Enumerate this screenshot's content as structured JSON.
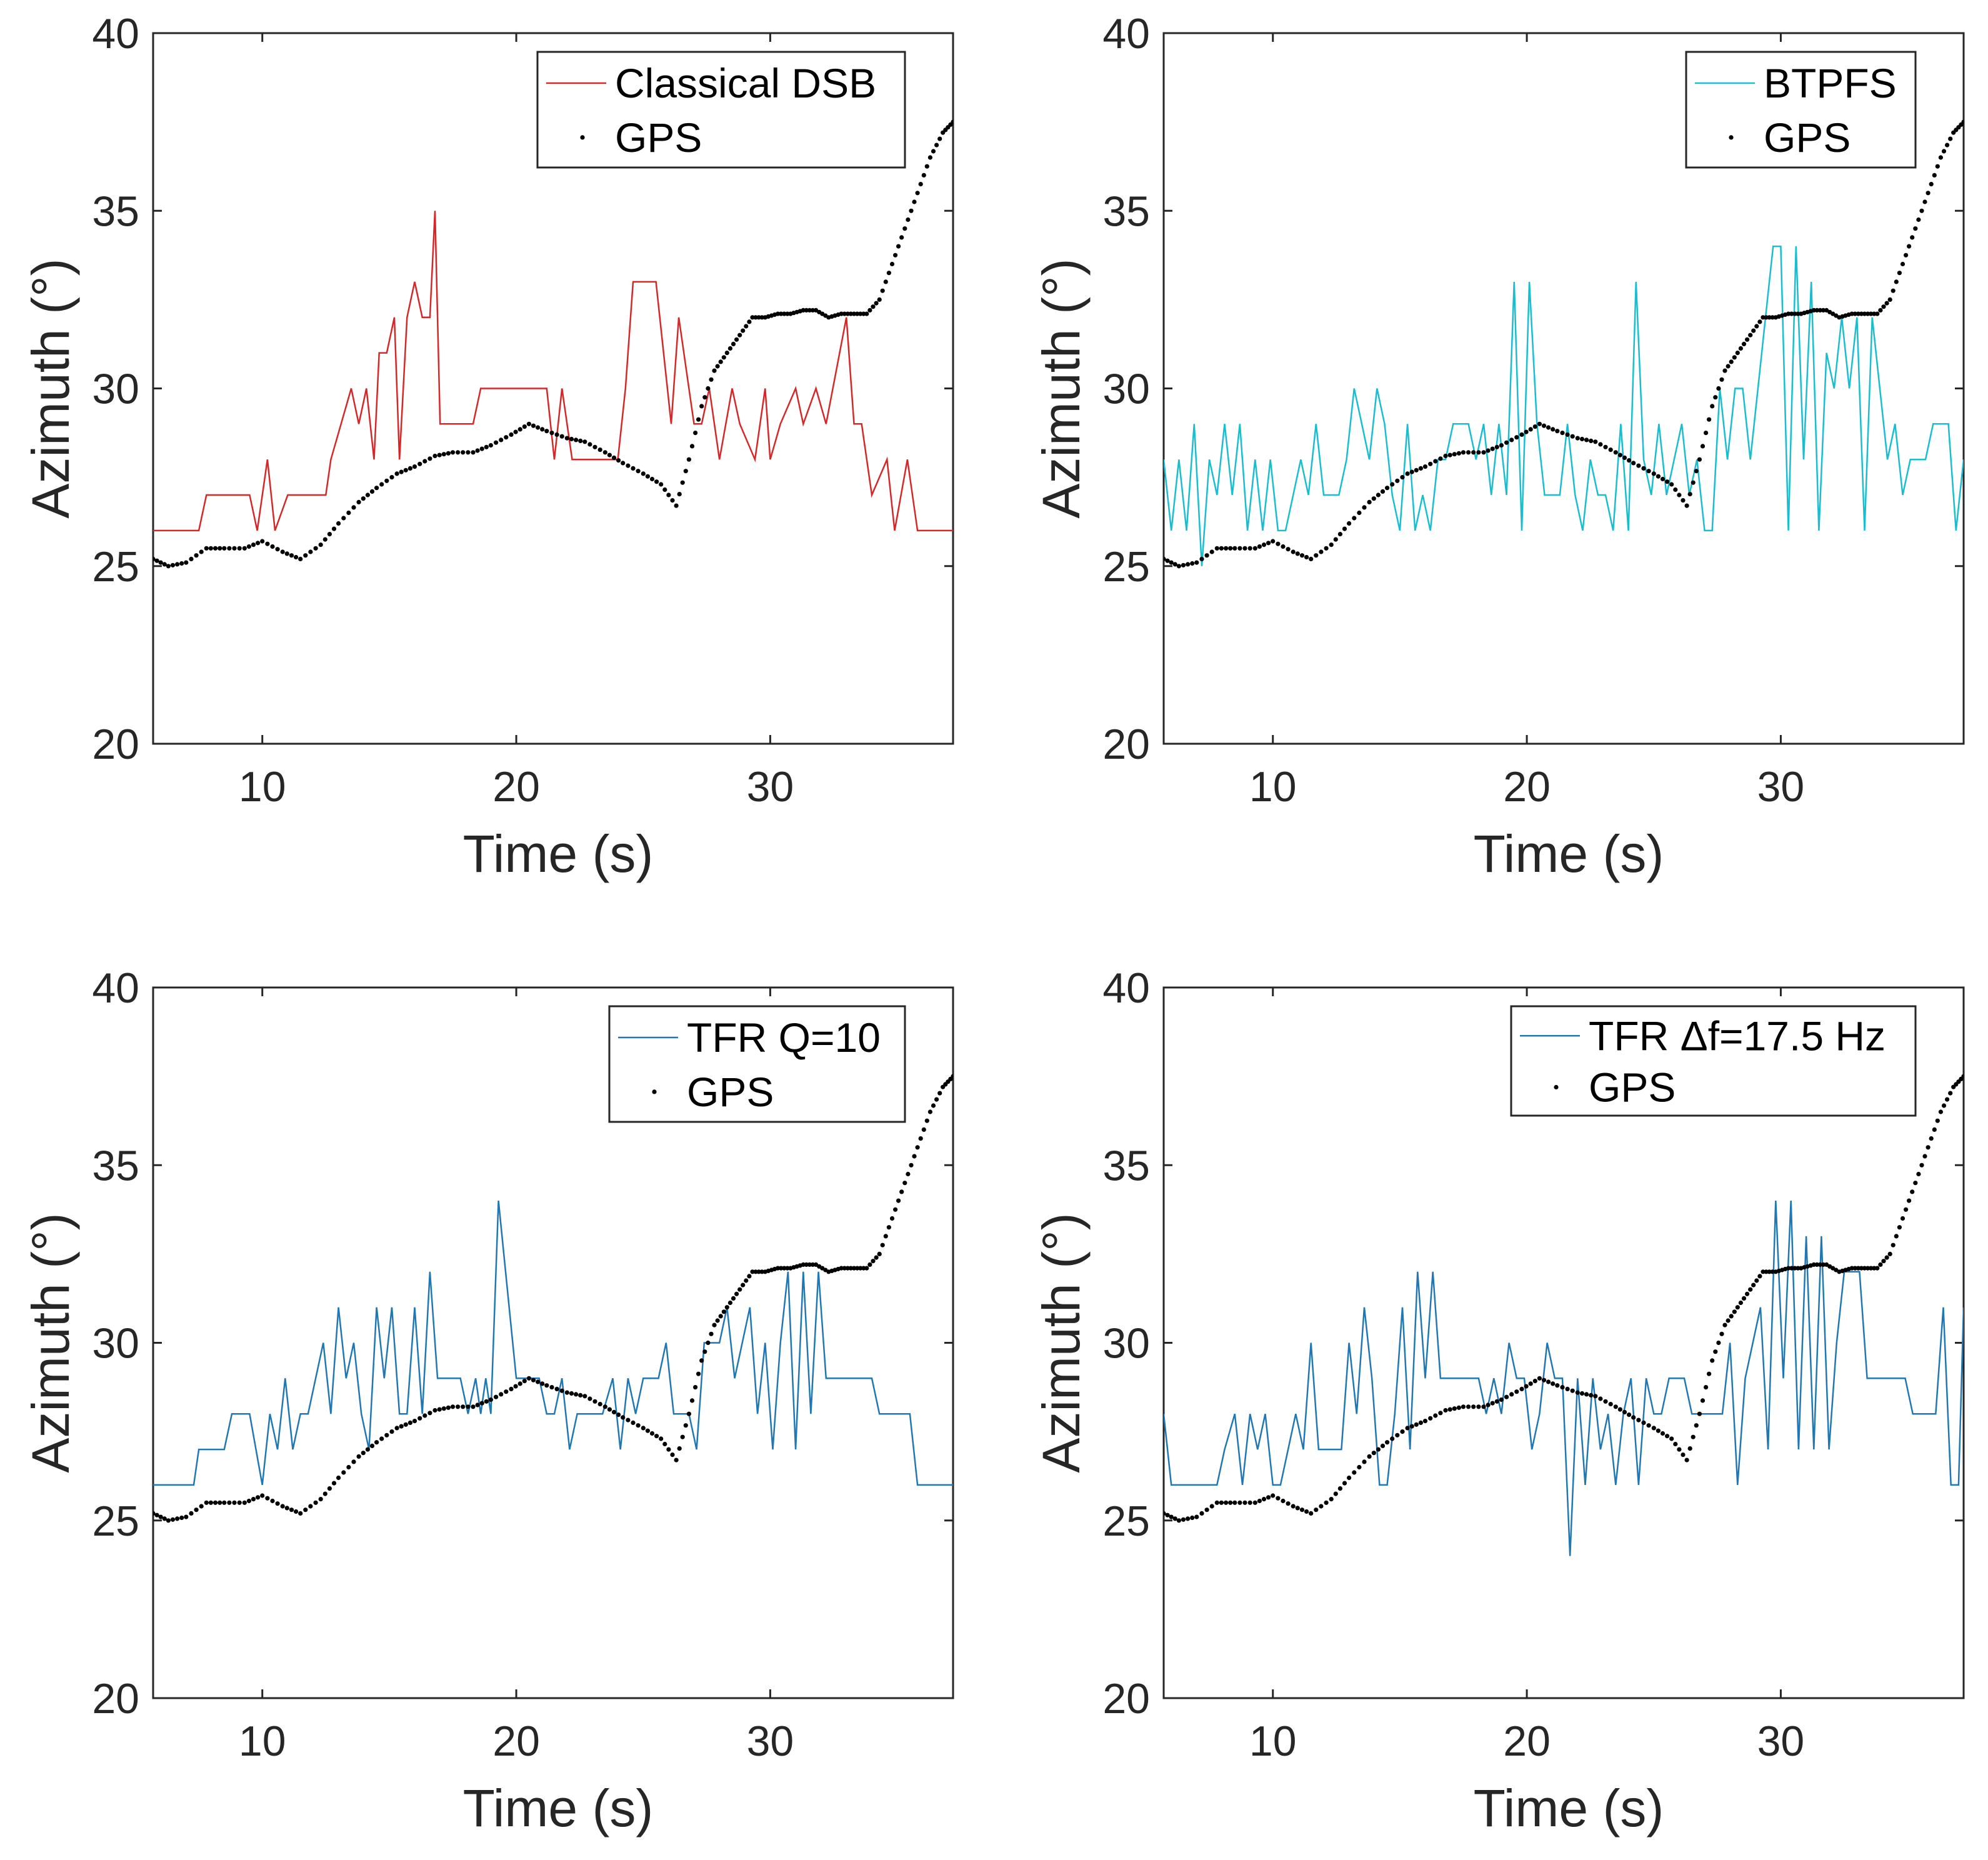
{
  "chart_data": [
    {
      "type": "line",
      "xlabel": "Time (s)",
      "ylabel": "Azimuth (°)",
      "xlim": [
        5.7,
        37.2
      ],
      "ylim": [
        20,
        40
      ],
      "xticks": [
        10,
        20,
        30
      ],
      "yticks": [
        20,
        25,
        30,
        35,
        40
      ],
      "series": [
        {
          "name": "Classical DSB",
          "style": "line",
          "color": "#d62728",
          "x": [
            5.7,
            7.5,
            7.8,
            9.5,
            9.8,
            10.2,
            10.5,
            11,
            12.5,
            12.7,
            13.5,
            13.8,
            14.1,
            14.4,
            14.6,
            14.9,
            15.2,
            15.4,
            15.7,
            16.0,
            16.3,
            16.6,
            16.8,
            17.0,
            17.3,
            18.3,
            18.6,
            19.5,
            20.5,
            21.2,
            21.5,
            21.8,
            22.2,
            22.5,
            23.5,
            24,
            24.3,
            24.6,
            25.5,
            26.1,
            26.4,
            27.0,
            27.3,
            27.6,
            28.0,
            28.5,
            28.8,
            29.4,
            29.8,
            30.0,
            30.4,
            31.0,
            31.3,
            31.8,
            32.2,
            33.0,
            33.3,
            33.6,
            34.0,
            34.6,
            34.9,
            35.4,
            35.8,
            37.2
          ],
          "y": [
            26,
            26,
            27,
            27,
            26,
            28,
            26,
            27,
            27,
            28,
            30,
            29,
            30,
            28,
            31,
            31,
            32,
            28,
            32,
            33,
            32,
            32,
            35,
            29,
            29,
            29,
            30,
            30,
            30,
            30,
            28,
            30,
            28,
            28,
            28,
            28,
            30,
            33,
            33,
            29,
            32,
            29,
            29,
            30,
            28,
            30,
            29,
            28,
            30,
            28,
            29,
            30,
            29,
            30,
            29,
            32,
            29,
            29,
            27,
            28,
            26,
            28,
            26,
            26
          ]
        }
      ],
      "legend": {
        "location": "top-right",
        "entries": [
          "Classical DSB",
          "GPS"
        ]
      }
    },
    {
      "type": "line",
      "xlabel": "Time (s)",
      "ylabel": "Azimuth (°)",
      "xlim": [
        5.7,
        37.2
      ],
      "ylim": [
        20,
        40
      ],
      "xticks": [
        10,
        20,
        30
      ],
      "yticks": [
        20,
        25,
        30,
        35,
        40
      ],
      "series": [
        {
          "name": "BTPFS",
          "style": "line",
          "color": "#17becf",
          "x": [
            5.7,
            6.0,
            6.3,
            6.6,
            6.9,
            7.2,
            7.5,
            7.8,
            8.1,
            8.4,
            8.7,
            9.0,
            9.3,
            9.6,
            9.9,
            10.2,
            10.5,
            10.8,
            11.1,
            11.4,
            11.7,
            12.0,
            12.3,
            12.6,
            12.9,
            13.2,
            13.5,
            13.8,
            14.1,
            14.4,
            14.7,
            15.0,
            15.3,
            15.6,
            15.9,
            16.2,
            16.5,
            16.8,
            17.1,
            17.4,
            17.7,
            18.0,
            18.3,
            18.6,
            18.9,
            19.2,
            19.5,
            19.8,
            20.1,
            20.4,
            20.7,
            21.0,
            21.3,
            21.6,
            21.9,
            22.2,
            22.5,
            22.8,
            23.1,
            23.4,
            23.7,
            24.0,
            24.3,
            24.6,
            24.9,
            25.2,
            25.5,
            25.8,
            26.1,
            26.4,
            26.7,
            27.0,
            27.3,
            27.6,
            27.9,
            28.2,
            28.5,
            28.8,
            29.1,
            29.4,
            29.7,
            30.0,
            30.3,
            30.6,
            30.9,
            31.2,
            31.5,
            31.8,
            32.1,
            32.4,
            32.7,
            33.0,
            33.3,
            33.6,
            33.9,
            34.2,
            34.5,
            34.8,
            35.1,
            35.4,
            35.7,
            36.0,
            36.3,
            36.6,
            36.9,
            37.2
          ],
          "y": [
            28,
            26,
            28,
            26,
            29,
            25,
            28,
            27,
            29,
            27,
            29,
            26,
            28,
            26,
            28,
            26,
            26,
            27,
            28,
            27,
            29,
            27,
            27,
            27,
            28,
            30,
            29,
            28,
            30,
            29,
            27,
            26,
            29,
            26,
            27,
            26,
            28,
            28,
            29,
            29,
            29,
            28,
            29,
            27,
            29,
            27,
            33,
            26,
            33,
            29,
            27,
            27,
            27,
            29,
            27,
            26,
            28,
            27,
            27,
            26,
            29,
            26,
            33,
            28,
            27,
            29,
            27,
            28,
            29,
            27,
            28,
            26,
            26,
            30,
            28,
            30,
            30,
            28,
            30,
            32,
            34,
            34,
            26,
            34,
            28,
            33,
            26,
            31,
            30,
            32,
            30,
            32,
            26,
            32,
            30,
            28,
            29,
            27,
            28,
            28,
            28,
            29,
            29,
            29,
            26,
            28
          ]
        }
      ],
      "legend": {
        "location": "top-right",
        "entries": [
          "BTPFS",
          "GPS"
        ]
      }
    },
    {
      "type": "line",
      "xlabel": "Time (s)",
      "ylabel": "Azimuth (°)",
      "xlim": [
        5.7,
        37.2
      ],
      "ylim": [
        20,
        40
      ],
      "xticks": [
        10,
        20,
        30
      ],
      "yticks": [
        20,
        25,
        30,
        35,
        40
      ],
      "series": [
        {
          "name": "TFR Q=10",
          "style": "line",
          "color": "#1f77b4",
          "x": [
            5.7,
            7.3,
            7.5,
            8.5,
            8.8,
            9.5,
            10.0,
            10.3,
            10.6,
            10.9,
            11.2,
            11.5,
            11.8,
            12.1,
            12.4,
            12.7,
            13.0,
            13.3,
            13.6,
            13.9,
            14.2,
            14.5,
            14.8,
            15.1,
            15.4,
            15.7,
            16.0,
            16.3,
            16.6,
            16.9,
            17.2,
            17.5,
            17.8,
            18.1,
            18.4,
            18.6,
            18.8,
            19.0,
            19.3,
            20.0,
            20.3,
            20.6,
            20.9,
            21.2,
            21.5,
            21.8,
            22.1,
            22.4,
            22.7,
            23.0,
            23.4,
            23.8,
            24.1,
            24.4,
            24.7,
            25.0,
            25.3,
            25.6,
            25.9,
            26.2,
            26.5,
            26.8,
            27.1,
            27.4,
            27.7,
            28.0,
            28.3,
            28.6,
            28.9,
            29.2,
            29.5,
            29.8,
            30.1,
            30.4,
            30.7,
            31.0,
            31.3,
            31.6,
            31.9,
            32.2,
            32.5,
            32.8,
            33.1,
            33.4,
            33.7,
            34.0,
            34.3,
            34.6,
            35.0,
            35.5,
            35.8,
            37.2
          ],
          "y": [
            26,
            26,
            27,
            27,
            28,
            28,
            26,
            28,
            27,
            29,
            27,
            28,
            28,
            29,
            30,
            28,
            31,
            29,
            30,
            28,
            27,
            31,
            29,
            31,
            28,
            28,
            31,
            28,
            32,
            29,
            29,
            29,
            29,
            28,
            29,
            28,
            29,
            28,
            34,
            29,
            29,
            29,
            29,
            28,
            28,
            29,
            27,
            28,
            28,
            28,
            28,
            29,
            27,
            29,
            28,
            29,
            29,
            29,
            30,
            28,
            28,
            28,
            27,
            30,
            30,
            30,
            31,
            29,
            30,
            31,
            28,
            30,
            27,
            30,
            32,
            27,
            32,
            28,
            32,
            29,
            29,
            29,
            29,
            29,
            29,
            29,
            28,
            28,
            28,
            28,
            26,
            26
          ]
        }
      ],
      "legend": {
        "location": "top-right",
        "entries": [
          "TFR Q=10",
          "GPS"
        ]
      }
    },
    {
      "type": "line",
      "xlabel": "Time (s)",
      "ylabel": "Azimuth (°)",
      "xlim": [
        5.7,
        37.2
      ],
      "ylim": [
        20,
        40
      ],
      "xticks": [
        10,
        20,
        30
      ],
      "yticks": [
        20,
        25,
        30,
        35,
        40
      ],
      "series": [
        {
          "name": "TFR Δf=17.5 Hz",
          "style": "line",
          "color": "#1f77b4",
          "x": [
            5.7,
            6.0,
            6.3,
            7.8,
            8.1,
            8.5,
            8.8,
            9.1,
            9.4,
            9.7,
            10.0,
            10.3,
            10.6,
            10.9,
            11.2,
            11.5,
            11.8,
            12.1,
            12.4,
            12.7,
            13.0,
            13.3,
            13.6,
            13.9,
            14.2,
            14.5,
            14.8,
            15.1,
            15.4,
            15.7,
            16.0,
            16.3,
            16.6,
            16.9,
            17.2,
            17.5,
            17.8,
            18.1,
            18.4,
            18.7,
            19.0,
            19.3,
            19.6,
            19.9,
            20.2,
            20.5,
            20.8,
            21.1,
            21.4,
            21.7,
            22.0,
            22.3,
            22.6,
            22.9,
            23.2,
            23.5,
            23.8,
            24.1,
            24.4,
            24.7,
            25.0,
            25.3,
            25.6,
            25.9,
            26.2,
            26.5,
            26.8,
            27.1,
            27.4,
            27.7,
            28.0,
            28.3,
            28.6,
            28.9,
            29.2,
            29.5,
            29.8,
            30.1,
            30.4,
            30.7,
            31.0,
            31.3,
            31.6,
            31.9,
            32.2,
            32.5,
            32.8,
            33.1,
            33.4,
            33.7,
            34.0,
            34.3,
            34.6,
            34.9,
            35.2,
            35.5,
            35.8,
            36.1,
            36.4,
            36.7,
            37.0,
            37.2
          ],
          "y": [
            28,
            26,
            26,
            26,
            27,
            28,
            26,
            28,
            27,
            28,
            26,
            26,
            27,
            28,
            27,
            30,
            27,
            27,
            27,
            27,
            30,
            28,
            31,
            29,
            26,
            26,
            28,
            31,
            27,
            32,
            29,
            32,
            29,
            29,
            29,
            29,
            29,
            29,
            28,
            29,
            28,
            30,
            29,
            29,
            27,
            28,
            30,
            29,
            29,
            24,
            29,
            26,
            29,
            27,
            28,
            26,
            28,
            29,
            26,
            29,
            28,
            28,
            29,
            29,
            29,
            28,
            28,
            28,
            28,
            28,
            30,
            26,
            29,
            30,
            31,
            27,
            34,
            29,
            34,
            27,
            33,
            27,
            33,
            27,
            30,
            32,
            32,
            32,
            29,
            29,
            29,
            29,
            29,
            29,
            28,
            28,
            28,
            28,
            31,
            26,
            26,
            31
          ]
        }
      ],
      "legend": {
        "location": "top-right",
        "entries": [
          "TFR Δf=17.5 Hz",
          "GPS"
        ]
      }
    }
  ],
  "gps": {
    "name": "GPS",
    "style": "dots",
    "color": "#000000",
    "x": [
      5.7,
      6.3,
      7.0,
      7.8,
      8.5,
      9.3,
      10.0,
      10.8,
      11.5,
      12.3,
      13.0,
      13.8,
      14.5,
      15.3,
      16.0,
      16.8,
      17.5,
      18.3,
      19.0,
      19.8,
      20.5,
      21.2,
      22.0,
      22.7,
      23.5,
      24.2,
      25.0,
      25.7,
      26.3,
      26.8,
      27.3,
      27.8,
      28.3,
      28.8,
      29.3,
      29.8,
      30.3,
      30.8,
      31.3,
      31.8,
      32.3,
      32.8,
      33.3,
      33.8,
      34.3,
      34.8,
      35.3,
      35.8,
      36.3,
      36.8,
      37.2
    ],
    "y": [
      25.2,
      25.0,
      25.1,
      25.5,
      25.5,
      25.5,
      25.7,
      25.4,
      25.2,
      25.6,
      26.2,
      26.8,
      27.2,
      27.6,
      27.8,
      28.1,
      28.2,
      28.2,
      28.4,
      28.7,
      29.0,
      28.8,
      28.6,
      28.5,
      28.2,
      27.9,
      27.6,
      27.3,
      26.7,
      28.0,
      29.5,
      30.5,
      31.0,
      31.5,
      32.0,
      32.0,
      32.1,
      32.1,
      32.2,
      32.2,
      32.0,
      32.1,
      32.1,
      32.1,
      32.5,
      33.5,
      34.5,
      35.5,
      36.5,
      37.2,
      37.5
    ]
  }
}
